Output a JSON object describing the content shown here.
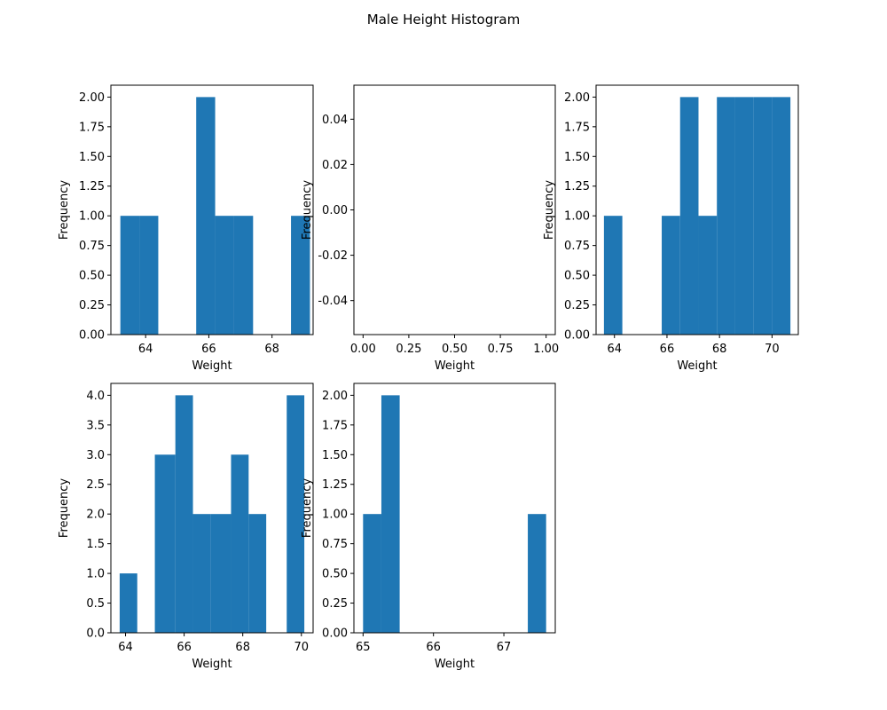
{
  "figure": {
    "title": "Male Height Histogram"
  },
  "chart_data": [
    {
      "type": "bar",
      "xlabel": "Weight",
      "ylabel": "Frequency",
      "bar_color": "#1f77b4",
      "xlim": [
        62.9,
        69.3
      ],
      "ylim": [
        0,
        2.1
      ],
      "xticks": [
        64,
        66,
        68
      ],
      "yticks": [
        0.0,
        0.25,
        0.5,
        0.75,
        1.0,
        1.25,
        1.5,
        1.75,
        2.0
      ],
      "ytick_decimals": 2,
      "bin_edges": [
        63.2,
        63.8,
        64.4,
        65.0,
        65.6,
        66.2,
        66.8,
        67.4,
        68.0,
        68.6,
        69.2
      ],
      "values": [
        1,
        1,
        0,
        0,
        2,
        1,
        1,
        0,
        0,
        1
      ]
    },
    {
      "type": "bar",
      "xlabel": "Weight",
      "ylabel": "Frequency",
      "bar_color": "#1f77b4",
      "xlim": [
        -0.05,
        1.05
      ],
      "ylim": [
        -0.055,
        0.055
      ],
      "xticks": [
        0.0,
        0.25,
        0.5,
        0.75,
        1.0
      ],
      "xtick_decimals": 2,
      "yticks": [
        -0.04,
        -0.02,
        0.0,
        0.02,
        0.04
      ],
      "ytick_decimals": 2,
      "bin_edges": [],
      "values": []
    },
    {
      "type": "bar",
      "xlabel": "Weight",
      "ylabel": "Frequency",
      "bar_color": "#1f77b4",
      "xlim": [
        63.3,
        71.0
      ],
      "ylim": [
        0,
        2.1
      ],
      "xticks": [
        64,
        66,
        68,
        70
      ],
      "yticks": [
        0.0,
        0.25,
        0.5,
        0.75,
        1.0,
        1.25,
        1.5,
        1.75,
        2.0
      ],
      "ytick_decimals": 2,
      "bin_edges": [
        63.6,
        64.3,
        65.1,
        65.8,
        66.5,
        67.2,
        67.9,
        68.6,
        69.3,
        70.0,
        70.7
      ],
      "values": [
        1,
        0,
        0,
        1,
        2,
        1,
        2,
        2,
        2,
        2
      ]
    },
    {
      "type": "bar",
      "xlabel": "Weight",
      "ylabel": "Frequency",
      "bar_color": "#1f77b4",
      "xlim": [
        63.5,
        70.4
      ],
      "ylim": [
        0,
        4.2
      ],
      "xticks": [
        64,
        66,
        68,
        70
      ],
      "yticks": [
        0.0,
        0.5,
        1.0,
        1.5,
        2.0,
        2.5,
        3.0,
        3.5,
        4.0
      ],
      "ytick_decimals": 1,
      "bin_edges": [
        63.8,
        64.4,
        65.0,
        65.7,
        66.3,
        66.9,
        67.6,
        68.2,
        68.8,
        69.5,
        70.1
      ],
      "values": [
        1,
        0,
        3,
        4,
        2,
        2,
        3,
        2,
        0,
        4
      ]
    },
    {
      "type": "bar",
      "xlabel": "Weight",
      "ylabel": "Frequency",
      "bar_color": "#1f77b4",
      "xlim": [
        64.87,
        67.73
      ],
      "ylim": [
        0,
        2.1
      ],
      "xticks": [
        65,
        66,
        67
      ],
      "yticks": [
        0.0,
        0.25,
        0.5,
        0.75,
        1.0,
        1.25,
        1.5,
        1.75,
        2.0
      ],
      "ytick_decimals": 2,
      "bin_edges": [
        65.0,
        65.26,
        65.52,
        65.78,
        66.04,
        66.3,
        66.56,
        66.82,
        67.08,
        67.34,
        67.6
      ],
      "values": [
        1,
        2,
        0,
        0,
        0,
        0,
        0,
        0,
        0,
        1
      ]
    }
  ]
}
